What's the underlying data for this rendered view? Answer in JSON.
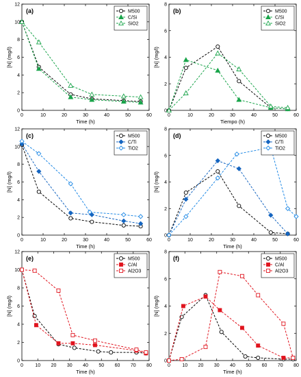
{
  "colors": {
    "M500": "#000000",
    "Si": "#19a44a",
    "Ti": "#1565c0",
    "TiO2": "#1e88e5",
    "Al": "#e0141e"
  },
  "chart_data": [
    {
      "id": "a",
      "panel_label": "(a)",
      "type": "line",
      "xlabel": "Time (h)",
      "ylabel": "[N] (mg/l)",
      "xlim": [
        0,
        60
      ],
      "ylim": [
        0,
        12
      ],
      "xticks": [
        0,
        10,
        20,
        30,
        40,
        50,
        60
      ],
      "yticks": [
        0,
        2,
        4,
        6,
        8,
        10,
        12
      ],
      "legend_position": "top-right",
      "grid": false,
      "series": [
        {
          "name": "M500",
          "color": "#000000",
          "marker": "circle-open",
          "x": [
            0,
            8,
            23,
            33,
            48,
            56
          ],
          "y": [
            10,
            4.9,
            1.8,
            1.3,
            1.1,
            1.0
          ]
        },
        {
          "name": "C/Si",
          "color": "#19a44a",
          "marker": "triangle-filled",
          "x": [
            0,
            8,
            23,
            33,
            48,
            56
          ],
          "y": [
            10,
            4.7,
            1.5,
            1.2,
            1.0,
            0.9
          ]
        },
        {
          "name": "SiO2",
          "color": "#19a44a",
          "marker": "triangle-open",
          "x": [
            0,
            8,
            23,
            33,
            48,
            56
          ],
          "y": [
            10,
            7.7,
            2.8,
            1.8,
            1.6,
            1.5
          ]
        }
      ]
    },
    {
      "id": "b",
      "panel_label": "(b)",
      "type": "line",
      "xlabel": "Tiempo (h)",
      "ylabel": "[N] (mg/l)",
      "xlim": [
        0,
        60
      ],
      "ylim": [
        0,
        8
      ],
      "xticks": [
        0,
        10,
        20,
        30,
        40,
        50,
        60
      ],
      "yticks": [
        0,
        2,
        4,
        6,
        8
      ],
      "legend_position": "top-right",
      "grid": false,
      "series": [
        {
          "name": "M500",
          "color": "#000000",
          "marker": "circle-open",
          "x": [
            0,
            8,
            23,
            33,
            48,
            56
          ],
          "y": [
            0,
            3.2,
            4.8,
            2.2,
            0.2,
            0.1
          ]
        },
        {
          "name": "C/Si",
          "color": "#19a44a",
          "marker": "triangle-filled",
          "x": [
            0,
            8,
            23,
            33,
            48,
            56
          ],
          "y": [
            0,
            3.8,
            3.0,
            0.8,
            0.2,
            0.1
          ]
        },
        {
          "name": "SiO2",
          "color": "#19a44a",
          "marker": "triangle-open",
          "x": [
            0,
            8,
            23,
            33,
            48,
            56
          ],
          "y": [
            0,
            1.3,
            4.3,
            3.1,
            0.3,
            0.2
          ]
        }
      ]
    },
    {
      "id": "c",
      "panel_label": "(c)",
      "type": "line",
      "xlabel": "Time (h)",
      "ylabel": "[N] (mg/l)",
      "xlim": [
        0,
        60
      ],
      "ylim": [
        0,
        12
      ],
      "xticks": [
        0,
        10,
        20,
        30,
        40,
        50,
        60
      ],
      "yticks": [
        0,
        2,
        4,
        6,
        8,
        10,
        12
      ],
      "legend_position": "top-right",
      "grid": false,
      "series": [
        {
          "name": "M500",
          "color": "#000000",
          "marker": "circle-open",
          "x": [
            0,
            8,
            23,
            33,
            48,
            56
          ],
          "y": [
            10.2,
            4.9,
            1.9,
            1.5,
            1.1,
            1.0
          ]
        },
        {
          "name": "C/Ti",
          "color": "#1565c0",
          "marker": "diamond-filled",
          "x": [
            0,
            8,
            23,
            33,
            48,
            56
          ],
          "y": [
            10.3,
            7.2,
            2.5,
            2.3,
            1.6,
            1.3
          ]
        },
        {
          "name": "TiO2",
          "color": "#1e88e5",
          "marker": "diamond-open",
          "x": [
            0,
            8,
            23,
            32,
            48,
            56
          ],
          "y": [
            10.6,
            9.2,
            5.8,
            2.6,
            2.3,
            2.1
          ]
        }
      ]
    },
    {
      "id": "d",
      "panel_label": "(d)",
      "type": "line",
      "xlabel": "Time (h)",
      "ylabel": "[N] (mg/l)",
      "xlim": [
        0,
        60
      ],
      "ylim": [
        0,
        8
      ],
      "xticks": [
        0,
        10,
        20,
        30,
        40,
        50,
        60
      ],
      "yticks": [
        0,
        2,
        4,
        6,
        8
      ],
      "legend_position": "top-right",
      "grid": false,
      "series": [
        {
          "name": "M500",
          "color": "#000000",
          "marker": "circle-open",
          "x": [
            0,
            8,
            23,
            33,
            48,
            56
          ],
          "y": [
            0,
            3.2,
            4.8,
            2.2,
            0.2,
            0.1
          ]
        },
        {
          "name": "C/Ti",
          "color": "#1565c0",
          "marker": "diamond-filled",
          "x": [
            0,
            8,
            23,
            33,
            48,
            56
          ],
          "y": [
            0,
            2.7,
            5.6,
            5.0,
            1.5,
            0.1
          ]
        },
        {
          "name": "TiO2",
          "color": "#1e88e5",
          "marker": "diamond-open",
          "x": [
            0,
            8,
            23,
            32,
            48,
            56,
            60
          ],
          "y": [
            0,
            1.4,
            4.3,
            6.1,
            6.6,
            2.0,
            1.4
          ]
        }
      ]
    },
    {
      "id": "e",
      "panel_label": "(e)",
      "type": "line",
      "xlabel": "Time (h)",
      "ylabel": "[N] (mg/l)",
      "xlim": [
        0,
        80
      ],
      "ylim": [
        0,
        12
      ],
      "xticks": [
        0,
        10,
        20,
        30,
        40,
        50,
        60,
        70,
        80
      ],
      "yticks": [
        0,
        2,
        4,
        6,
        8,
        10,
        12
      ],
      "legend_position": "top-right",
      "grid": false,
      "series": [
        {
          "name": "M500",
          "color": "#000000",
          "marker": "circle-open",
          "x": [
            0,
            8,
            23,
            33,
            48,
            56,
            72,
            78
          ],
          "y": [
            10,
            4.9,
            1.8,
            1.4,
            1.0,
            0.9,
            0.9,
            0.8
          ]
        },
        {
          "name": "C/Al",
          "color": "#e0141e",
          "marker": "square-filled",
          "x": [
            0,
            9,
            23,
            32,
            46,
            72,
            78
          ],
          "y": [
            10,
            3.9,
            1.9,
            1.9,
            1.7,
            1.1,
            0.8
          ]
        },
        {
          "name": "Al2O3",
          "color": "#e0141e",
          "marker": "square-open",
          "x": [
            0,
            8,
            23,
            32,
            46,
            72,
            78
          ],
          "y": [
            10,
            9.9,
            7.7,
            2.8,
            2.2,
            1.2,
            0.9
          ]
        }
      ]
    },
    {
      "id": "f",
      "panel_label": "(f)",
      "type": "line",
      "xlabel": "Time (h)",
      "ylabel": "[N] (mg/l)",
      "xlim": [
        0,
        80
      ],
      "ylim": [
        0,
        8
      ],
      "xticks": [
        0,
        10,
        20,
        30,
        40,
        50,
        60,
        70,
        80
      ],
      "yticks": [
        0,
        2,
        4,
        6,
        8
      ],
      "legend_position": "top-right",
      "grid": false,
      "series": [
        {
          "name": "M500",
          "color": "#000000",
          "marker": "circle-open",
          "x": [
            0,
            8,
            23,
            33,
            48,
            56,
            72,
            78
          ],
          "y": [
            0,
            3.2,
            4.8,
            2.1,
            0.3,
            0.2,
            0.1,
            0.1
          ]
        },
        {
          "name": "C/Al",
          "color": "#e0141e",
          "marker": "square-filled",
          "x": [
            0,
            9,
            23,
            32,
            46,
            56,
            72,
            78
          ],
          "y": [
            0,
            4.0,
            4.7,
            3.7,
            2.4,
            1.1,
            0.2,
            0.2
          ]
        },
        {
          "name": "Al2O3",
          "color": "#e0141e",
          "marker": "square-open",
          "x": [
            0,
            8,
            23,
            32,
            46,
            56,
            72,
            78
          ],
          "y": [
            0,
            0.1,
            1.0,
            6.5,
            6.2,
            4.8,
            2.7,
            0.2
          ]
        }
      ]
    }
  ]
}
